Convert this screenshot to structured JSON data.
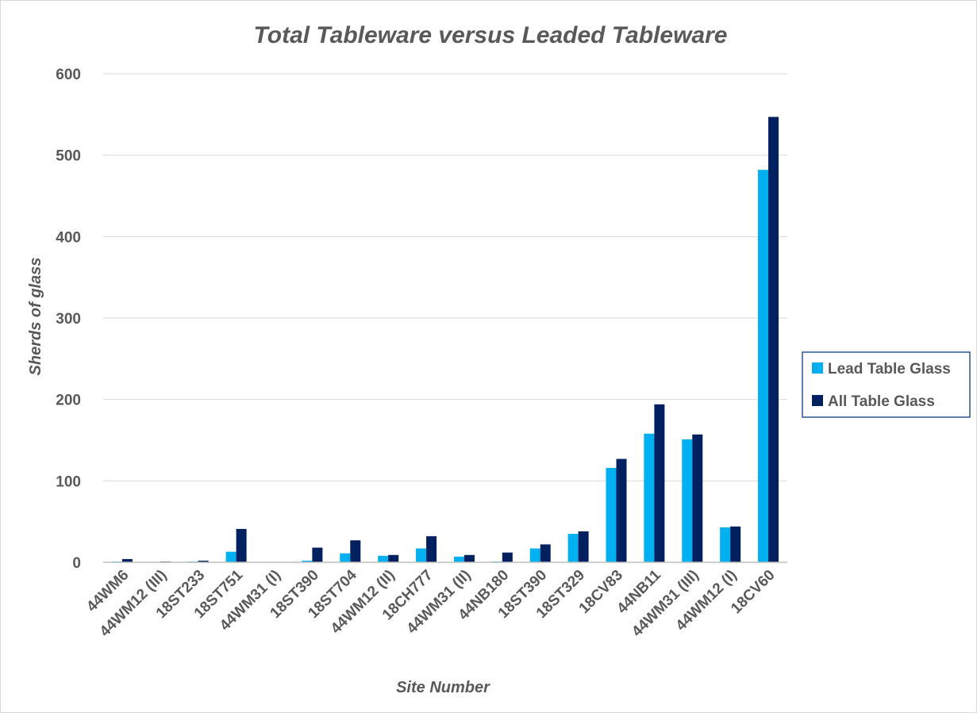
{
  "chart_data": {
    "type": "bar",
    "title": "Total Tableware versus Leaded Tableware",
    "xlabel": "Site Number",
    "ylabel": "Sherds of glass",
    "ylim": [
      0,
      600
    ],
    "yticks": [
      0,
      100,
      200,
      300,
      400,
      500,
      600
    ],
    "grid": true,
    "legend_position": "right",
    "categories": [
      "44WM6",
      "44WM12 (III)",
      "18ST233",
      "18ST751",
      "44WM31 (I)",
      "18ST390",
      "18ST704",
      "44WM12 (II)",
      "18CH777",
      "44WM31 (II)",
      "44NB180",
      "18ST390",
      "18ST329",
      "18CV83",
      "44NB11",
      "44WM31 (III)",
      "44WM12 (I)",
      "18CV60"
    ],
    "series": [
      {
        "name": "Lead Table Glass",
        "color": "#00b0f0",
        "values": [
          1,
          0,
          1,
          13,
          0,
          2,
          11,
          8,
          17,
          7,
          1,
          17,
          35,
          116,
          158,
          151,
          43,
          482
        ]
      },
      {
        "name": "All Table Glass",
        "color": "#002060",
        "values": [
          4,
          1,
          2,
          41,
          0,
          18,
          27,
          9,
          32,
          9,
          12,
          22,
          38,
          127,
          194,
          157,
          44,
          547
        ]
      }
    ]
  }
}
